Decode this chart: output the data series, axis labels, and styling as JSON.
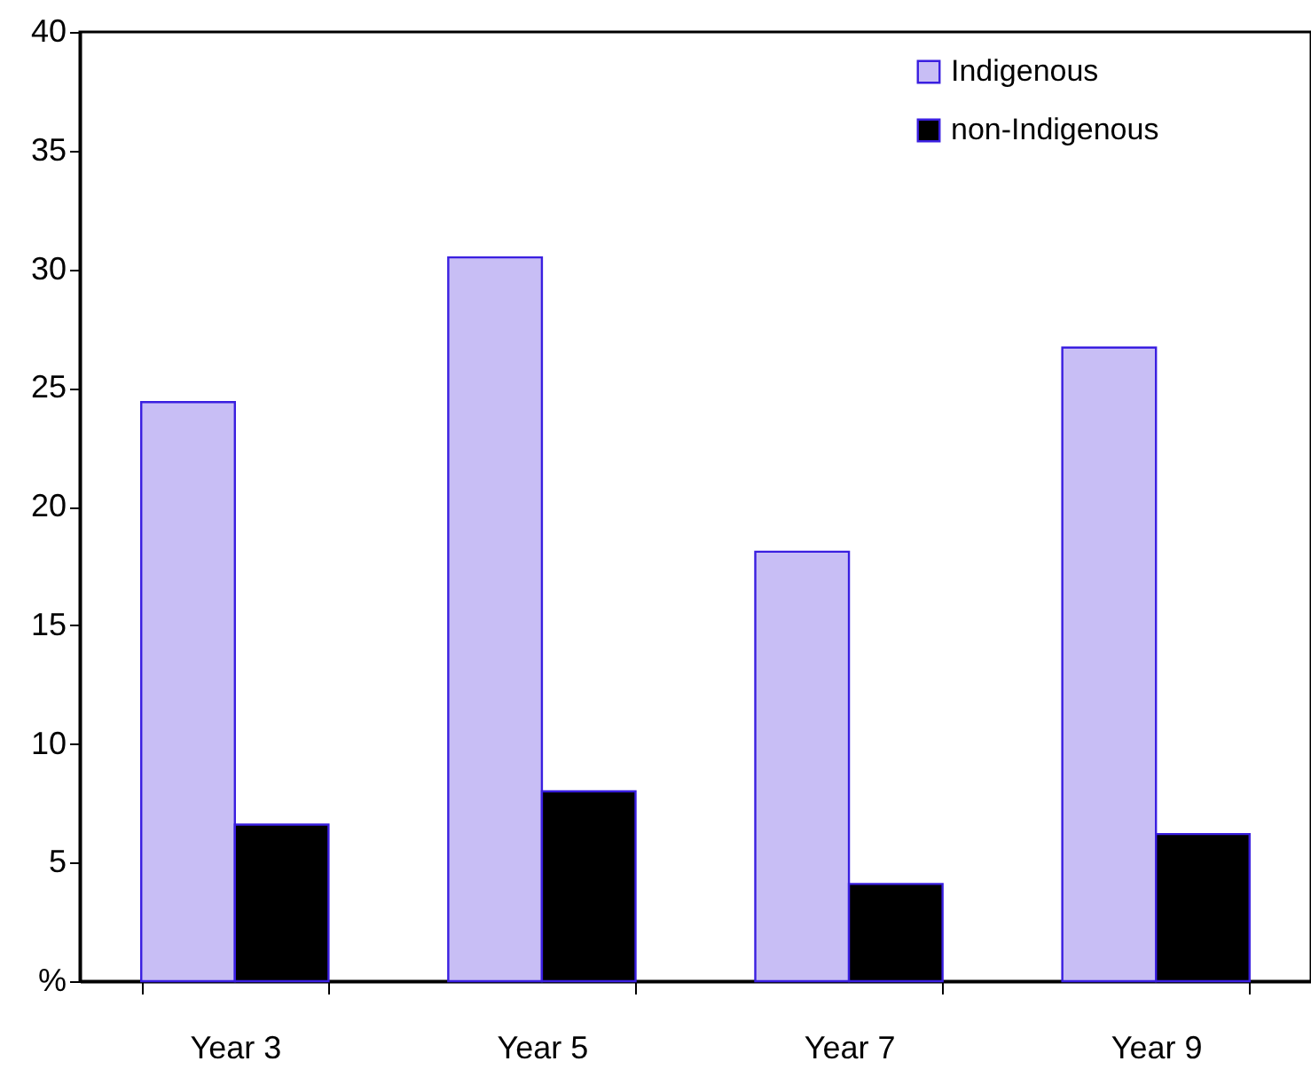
{
  "chart_data": {
    "type": "bar",
    "categories": [
      "Year 3",
      "Year 5",
      "Year 7",
      "Year 9"
    ],
    "series": [
      {
        "name": "Indigenous",
        "color": "#c8bef5",
        "values": [
          24.4,
          30.5,
          18.1,
          26.7
        ]
      },
      {
        "name": "non-Indigenous",
        "color": "#000000",
        "values": [
          6.6,
          8.0,
          4.1,
          6.2
        ]
      }
    ],
    "ylim": [
      0,
      40
    ],
    "yticks": [
      {
        "value": 0,
        "label": "%"
      },
      5,
      10,
      15,
      20,
      25,
      30,
      35,
      40
    ],
    "grid": false,
    "legend": "top right"
  }
}
